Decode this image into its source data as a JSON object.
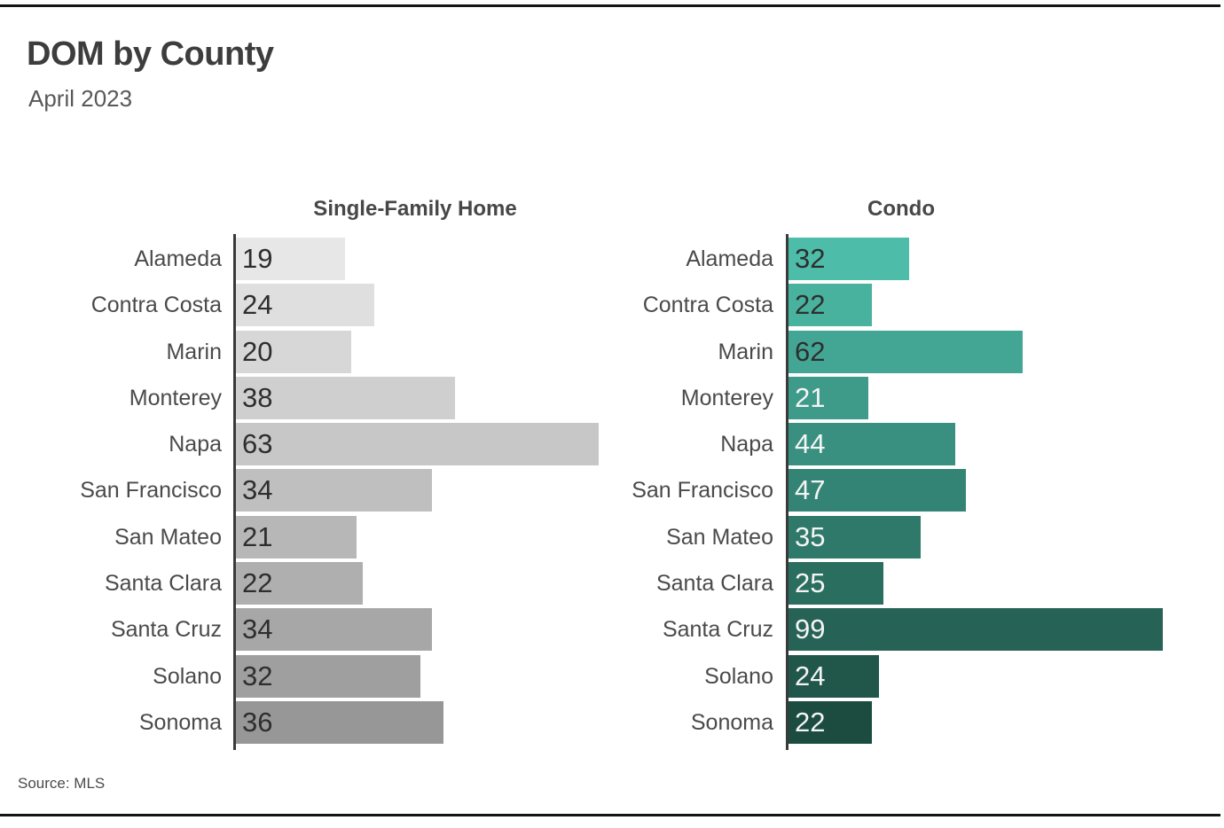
{
  "page": {
    "title": "DOM by County",
    "subtitle": "April 2023",
    "source_label": "Source: MLS"
  },
  "chart_data": [
    {
      "type": "bar",
      "orientation": "horizontal",
      "title": "Single-Family Home",
      "categories": [
        "Alameda",
        "Contra Costa",
        "Marin",
        "Monterey",
        "Napa",
        "San Francisco",
        "San Mateo",
        "Santa Clara",
        "Santa Cruz",
        "Solano",
        "Sonoma"
      ],
      "values": [
        19,
        24,
        20,
        38,
        63,
        34,
        21,
        22,
        34,
        32,
        36
      ],
      "xlim": [
        0,
        63
      ],
      "value_labels_inside_bars": true,
      "grid": false,
      "axis_color": "#3a3a3a",
      "bar_colors": [
        "#E7E7E7",
        "#DFDFDF",
        "#D7D7D7",
        "#CFCFCF",
        "#C7C7C7",
        "#BFBFBF",
        "#B7B7B7",
        "#AFAFAF",
        "#A7A7A7",
        "#9F9F9F",
        "#979797"
      ],
      "value_label_colors": [
        "#2e2e2e",
        "#2e2e2e",
        "#2e2e2e",
        "#2e2e2e",
        "#2e2e2e",
        "#2e2e2e",
        "#2e2e2e",
        "#2e2e2e",
        "#2e2e2e",
        "#2e2e2e",
        "#2e2e2e"
      ]
    },
    {
      "type": "bar",
      "orientation": "horizontal",
      "title": "Condo",
      "categories": [
        "Alameda",
        "Contra Costa",
        "Marin",
        "Monterey",
        "Napa",
        "San Francisco",
        "San Mateo",
        "Santa Clara",
        "Santa Cruz",
        "Solano",
        "Sonoma"
      ],
      "values": [
        32,
        22,
        62,
        21,
        44,
        47,
        35,
        25,
        99,
        24,
        22
      ],
      "xlim": [
        0,
        99
      ],
      "value_labels_inside_bars": true,
      "grid": false,
      "axis_color": "#3a3a3a",
      "bar_colors": [
        "#4DBDAA",
        "#48B29F",
        "#43A695",
        "#3E9B8A",
        "#399080",
        "#348475",
        "#2F796A",
        "#2A6E60",
        "#266255",
        "#21574B",
        "#1C4C40"
      ],
      "value_label_colors": [
        "#2e2e2e",
        "#2e2e2e",
        "#2e2e2e",
        "#f4f4f4",
        "#f4f4f4",
        "#f4f4f4",
        "#f4f4f4",
        "#f4f4f4",
        "#f4f4f4",
        "#f4f4f4",
        "#f4f4f4"
      ]
    }
  ]
}
